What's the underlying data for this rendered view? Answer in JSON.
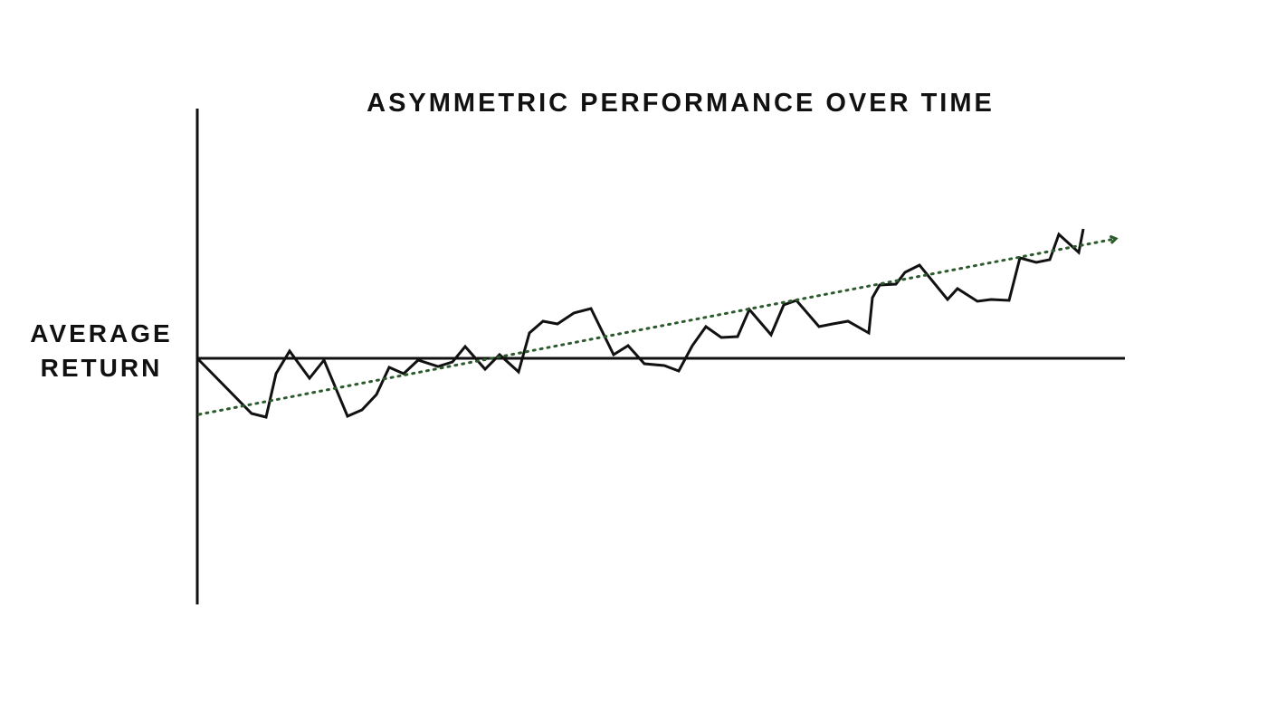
{
  "chart_data": {
    "type": "line",
    "title": "ASYMMETRIC PERFORMANCE OVER TIME",
    "ylabel": "AVERAGE RETURN",
    "xlim": [
      0,
      1025
    ],
    "ylim": [
      -272,
      276
    ],
    "series": [
      {
        "color": "#111111",
        "line_style": "solid",
        "x": [
          0,
          60,
          76,
          87,
          102,
          124,
          140,
          166,
          182,
          198,
          212,
          228,
          244,
          266,
          282,
          296,
          318,
          334,
          355,
          367,
          382,
          398,
          416,
          435,
          460,
          476,
          494,
          516,
          532,
          547,
          562,
          579,
          597,
          610,
          634,
          648,
          662,
          687,
          702,
          719,
          742,
          746,
          754,
          772,
          782,
          798,
          829,
          840,
          862,
          877,
          897,
          909,
          927,
          942,
          952,
          974,
          979
        ],
        "values": [
          0,
          -61,
          -65,
          -17,
          8,
          -22,
          -2,
          -64,
          -57,
          -40,
          -10,
          -17,
          -2,
          -9,
          -4,
          13,
          -12,
          4,
          -15,
          28,
          41,
          38,
          50,
          55,
          4,
          14,
          -6,
          -8,
          -14,
          14,
          35,
          23,
          24,
          54,
          26,
          59,
          64,
          35,
          38,
          41,
          28,
          67,
          81,
          82,
          95,
          103,
          65,
          77,
          63,
          65,
          64,
          111,
          106,
          109,
          137,
          117,
          143
        ]
      },
      {
        "color": "#2d5a2d",
        "line_style": "dotted",
        "arrow": true,
        "x": [
          2,
          1014
        ],
        "values": [
          -62,
          132
        ]
      }
    ]
  }
}
